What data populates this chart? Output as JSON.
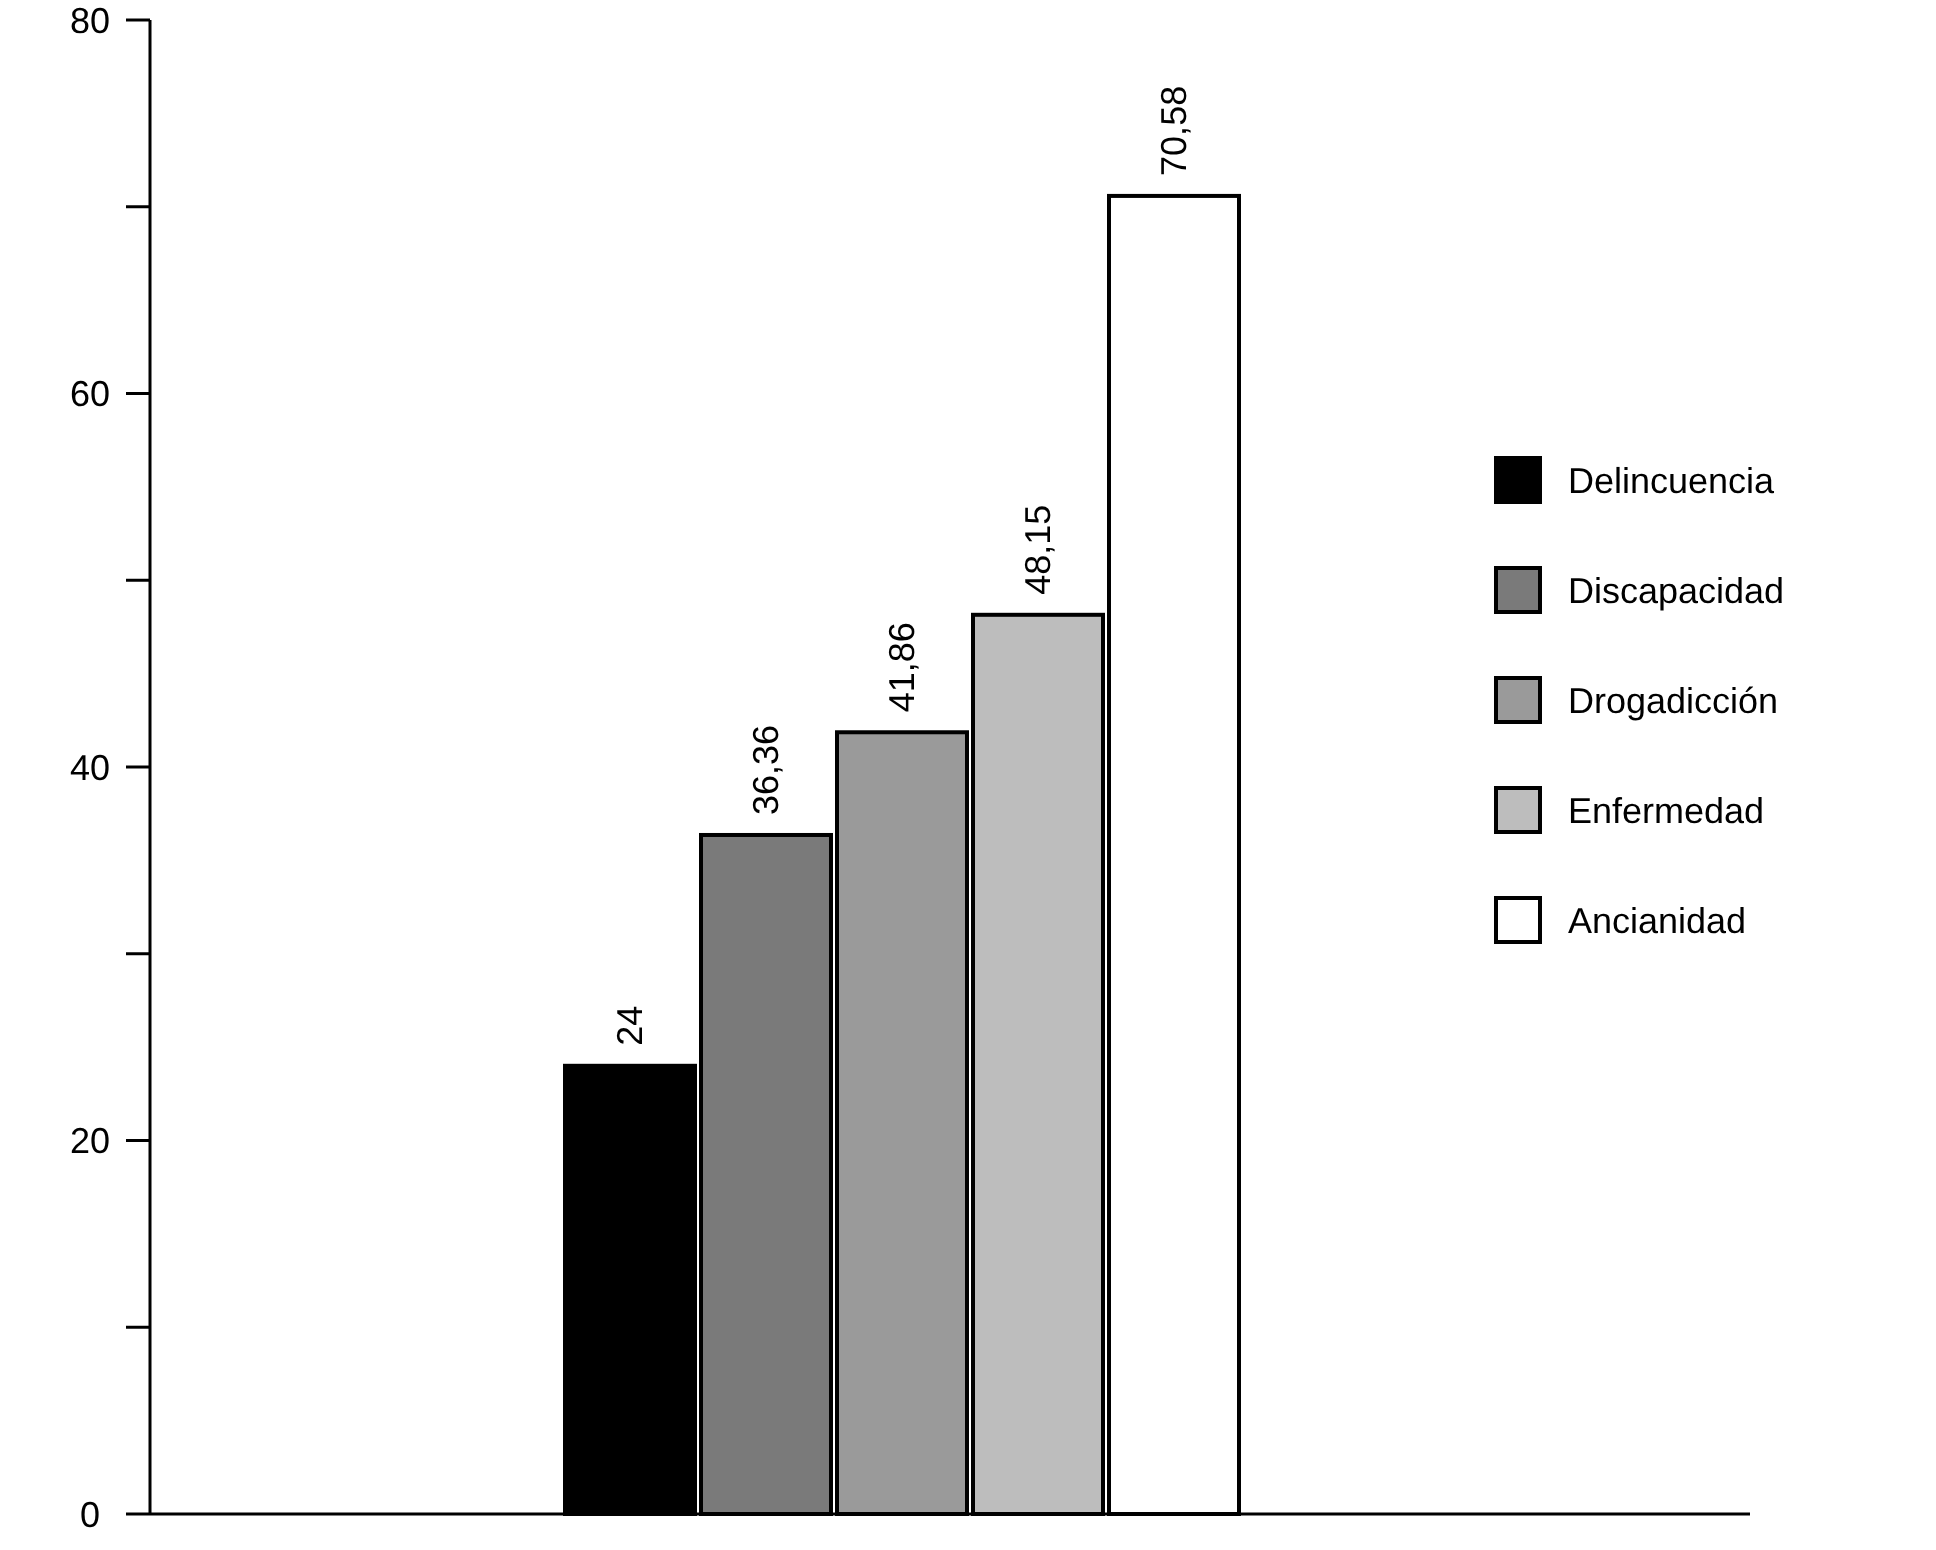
{
  "chart_data": {
    "type": "bar",
    "categories": [
      null
    ],
    "series": [
      {
        "name": "Delincuencia",
        "color": "#000000",
        "values": [
          24
        ],
        "value_labels": [
          "24"
        ]
      },
      {
        "name": "Discapacidad",
        "color": "#7a7a7a",
        "values": [
          36.36
        ],
        "value_labels": [
          "36,36"
        ]
      },
      {
        "name": "Drogadicción",
        "color": "#9a9a9a",
        "values": [
          41.86
        ],
        "value_labels": [
          "41,86"
        ]
      },
      {
        "name": "Enfermedad",
        "color": "#bdbdbd",
        "values": [
          48.15
        ],
        "value_labels": [
          "48,15"
        ]
      },
      {
        "name": "Ancianidad",
        "color": "#ffffff",
        "values": [
          70.58
        ],
        "value_labels": [
          "70,58"
        ]
      }
    ],
    "ylim": [
      0,
      80
    ],
    "yticks": [
      0,
      {
        "value": 10,
        "label": null
      },
      20,
      {
        "value": 30,
        "label": null
      },
      40,
      {
        "value": 50,
        "label": null
      },
      60,
      {
        "value": 70,
        "label": null
      },
      80
    ],
    "grid": false,
    "legend": "right"
  }
}
